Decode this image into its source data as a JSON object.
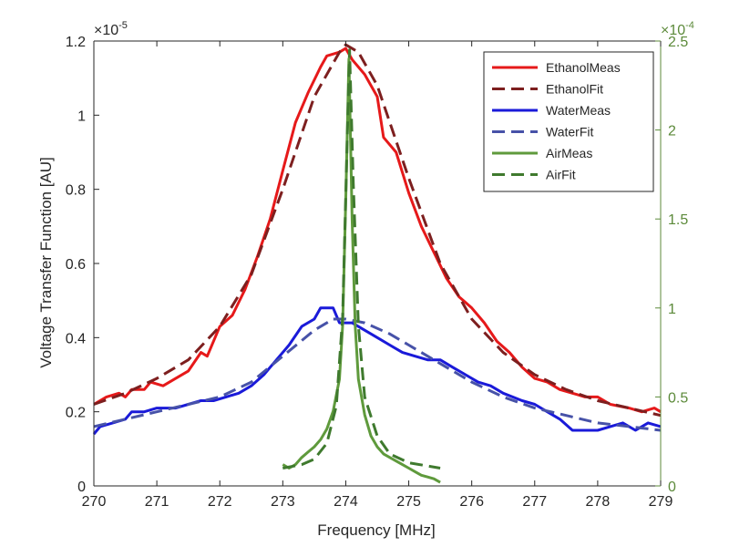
{
  "chart_data": {
    "type": "line",
    "xlabel": "Frequency [MHz]",
    "ylabel_left": "Voltage Transfer Function [AU]",
    "ylabel_right": "",
    "left_exponent": "×10",
    "left_exponent_power": "-5",
    "right_exponent": "×10",
    "right_exponent_power": "-4",
    "xlim": [
      270,
      279
    ],
    "ylim_left": [
      0,
      1.2
    ],
    "ylim_right": [
      0,
      2.5
    ],
    "x_ticks": [
      {
        "value": 270,
        "label": "270"
      },
      {
        "value": 271,
        "label": "271"
      },
      {
        "value": 272,
        "label": "272"
      },
      {
        "value": 273,
        "label": "273"
      },
      {
        "value": 274,
        "label": "274"
      },
      {
        "value": 275,
        "label": "275"
      },
      {
        "value": 276,
        "label": "276"
      },
      {
        "value": 277,
        "label": "277"
      },
      {
        "value": 278,
        "label": "278"
      },
      {
        "value": 279,
        "label": "279"
      }
    ],
    "y_left_ticks": [
      {
        "value": 0,
        "label": "0"
      },
      {
        "value": 0.2,
        "label": "0.2"
      },
      {
        "value": 0.4,
        "label": "0.4"
      },
      {
        "value": 0.6,
        "label": "0.6"
      },
      {
        "value": 0.8,
        "label": "0.8"
      },
      {
        "value": 1.0,
        "label": "1"
      },
      {
        "value": 1.2,
        "label": "1.2"
      }
    ],
    "y_right_ticks": [
      {
        "value": 0,
        "label": "0"
      },
      {
        "value": 0.5,
        "label": "0.5"
      },
      {
        "value": 1.0,
        "label": "1"
      },
      {
        "value": 1.5,
        "label": "1.5"
      },
      {
        "value": 2.0,
        "label": "2"
      },
      {
        "value": 2.5,
        "label": "2.5"
      }
    ],
    "grid": false,
    "legend_position": "top-right",
    "colors": {
      "ethanol_meas": "#e6191a",
      "ethanol_fit": "#7d1f1f",
      "water_meas": "#1a1ad9",
      "water_fit": "#4752a8",
      "air_meas": "#5f9a3c",
      "air_fit": "#3f7a2e",
      "right_axis": "#5c8a3a",
      "left_axis": "#262626"
    },
    "series": [
      {
        "name": "EthanolMeas",
        "axis": "left",
        "style": "solid",
        "color_key": "ethanol_meas",
        "points": [
          [
            270,
            0.22
          ],
          [
            270.2,
            0.24
          ],
          [
            270.4,
            0.25
          ],
          [
            270.5,
            0.24
          ],
          [
            270.6,
            0.26
          ],
          [
            270.8,
            0.26
          ],
          [
            270.9,
            0.28
          ],
          [
            271.1,
            0.27
          ],
          [
            271.3,
            0.29
          ],
          [
            271.5,
            0.31
          ],
          [
            271.7,
            0.36
          ],
          [
            271.8,
            0.35
          ],
          [
            272,
            0.43
          ],
          [
            272.2,
            0.46
          ],
          [
            272.4,
            0.53
          ],
          [
            272.6,
            0.62
          ],
          [
            272.8,
            0.72
          ],
          [
            273,
            0.85
          ],
          [
            273.2,
            0.98
          ],
          [
            273.4,
            1.06
          ],
          [
            273.6,
            1.13
          ],
          [
            273.7,
            1.16
          ],
          [
            273.9,
            1.17
          ],
          [
            274.0,
            1.18
          ],
          [
            274.1,
            1.15
          ],
          [
            274.3,
            1.11
          ],
          [
            274.5,
            1.05
          ],
          [
            274.6,
            0.94
          ],
          [
            274.8,
            0.9
          ],
          [
            275,
            0.79
          ],
          [
            275.2,
            0.7
          ],
          [
            275.4,
            0.63
          ],
          [
            275.6,
            0.56
          ],
          [
            275.8,
            0.51
          ],
          [
            276,
            0.48
          ],
          [
            276.2,
            0.44
          ],
          [
            276.4,
            0.39
          ],
          [
            276.6,
            0.36
          ],
          [
            276.8,
            0.32
          ],
          [
            277,
            0.29
          ],
          [
            277.2,
            0.28
          ],
          [
            277.4,
            0.26
          ],
          [
            277.6,
            0.25
          ],
          [
            277.8,
            0.24
          ],
          [
            278,
            0.24
          ],
          [
            278.2,
            0.22
          ],
          [
            278.5,
            0.21
          ],
          [
            278.7,
            0.2
          ],
          [
            278.9,
            0.21
          ],
          [
            279,
            0.2
          ]
        ]
      },
      {
        "name": "EthanolFit",
        "axis": "left",
        "style": "dash",
        "color_key": "ethanol_fit",
        "points": [
          [
            270,
            0.22
          ],
          [
            270.5,
            0.25
          ],
          [
            271,
            0.29
          ],
          [
            271.5,
            0.34
          ],
          [
            272,
            0.43
          ],
          [
            272.5,
            0.57
          ],
          [
            273,
            0.8
          ],
          [
            273.5,
            1.05
          ],
          [
            273.9,
            1.17
          ],
          [
            274.0,
            1.19
          ],
          [
            274.2,
            1.17
          ],
          [
            274.5,
            1.08
          ],
          [
            275,
            0.83
          ],
          [
            275.5,
            0.6
          ],
          [
            276,
            0.45
          ],
          [
            276.5,
            0.36
          ],
          [
            277,
            0.3
          ],
          [
            277.5,
            0.26
          ],
          [
            278,
            0.23
          ],
          [
            278.5,
            0.21
          ],
          [
            279,
            0.19
          ]
        ]
      },
      {
        "name": "WaterMeas",
        "axis": "left",
        "style": "solid",
        "color_key": "water_meas",
        "points": [
          [
            270,
            0.14
          ],
          [
            270.1,
            0.16
          ],
          [
            270.3,
            0.17
          ],
          [
            270.5,
            0.18
          ],
          [
            270.6,
            0.2
          ],
          [
            270.8,
            0.2
          ],
          [
            271,
            0.21
          ],
          [
            271.3,
            0.21
          ],
          [
            271.5,
            0.22
          ],
          [
            271.7,
            0.23
          ],
          [
            271.9,
            0.23
          ],
          [
            272.1,
            0.24
          ],
          [
            272.3,
            0.25
          ],
          [
            272.5,
            0.27
          ],
          [
            272.7,
            0.3
          ],
          [
            272.9,
            0.34
          ],
          [
            273.1,
            0.38
          ],
          [
            273.3,
            0.43
          ],
          [
            273.5,
            0.45
          ],
          [
            273.6,
            0.48
          ],
          [
            273.8,
            0.48
          ],
          [
            273.9,
            0.44
          ],
          [
            274.1,
            0.44
          ],
          [
            274.3,
            0.42
          ],
          [
            274.5,
            0.4
          ],
          [
            274.7,
            0.38
          ],
          [
            274.9,
            0.36
          ],
          [
            275.1,
            0.35
          ],
          [
            275.3,
            0.34
          ],
          [
            275.5,
            0.34
          ],
          [
            275.7,
            0.32
          ],
          [
            275.9,
            0.3
          ],
          [
            276.1,
            0.28
          ],
          [
            276.3,
            0.27
          ],
          [
            276.5,
            0.25
          ],
          [
            276.8,
            0.23
          ],
          [
            277,
            0.22
          ],
          [
            277.2,
            0.2
          ],
          [
            277.4,
            0.18
          ],
          [
            277.6,
            0.15
          ],
          [
            277.8,
            0.15
          ],
          [
            278,
            0.15
          ],
          [
            278.2,
            0.16
          ],
          [
            278.4,
            0.17
          ],
          [
            278.6,
            0.15
          ],
          [
            278.8,
            0.17
          ],
          [
            279,
            0.16
          ]
        ]
      },
      {
        "name": "WaterFit",
        "axis": "left",
        "style": "dash",
        "color_key": "water_fit",
        "points": [
          [
            270,
            0.16
          ],
          [
            270.5,
            0.18
          ],
          [
            271,
            0.2
          ],
          [
            271.5,
            0.22
          ],
          [
            272,
            0.24
          ],
          [
            272.5,
            0.28
          ],
          [
            273,
            0.35
          ],
          [
            273.5,
            0.42
          ],
          [
            273.8,
            0.45
          ],
          [
            274,
            0.45
          ],
          [
            274.3,
            0.44
          ],
          [
            274.7,
            0.41
          ],
          [
            275,
            0.38
          ],
          [
            275.5,
            0.33
          ],
          [
            276,
            0.28
          ],
          [
            276.5,
            0.24
          ],
          [
            277,
            0.21
          ],
          [
            277.5,
            0.19
          ],
          [
            278,
            0.17
          ],
          [
            278.5,
            0.16
          ],
          [
            279,
            0.15
          ]
        ]
      },
      {
        "name": "AirMeas",
        "axis": "right",
        "style": "solid",
        "color_key": "air_meas",
        "points": [
          [
            273.0,
            0.12
          ],
          [
            273.1,
            0.1
          ],
          [
            273.2,
            0.12
          ],
          [
            273.3,
            0.16
          ],
          [
            273.4,
            0.19
          ],
          [
            273.5,
            0.22
          ],
          [
            273.6,
            0.26
          ],
          [
            273.7,
            0.32
          ],
          [
            273.8,
            0.42
          ],
          [
            273.9,
            0.6
          ],
          [
            273.95,
            0.9
          ],
          [
            274.0,
            1.6
          ],
          [
            274.05,
            2.4
          ],
          [
            274.1,
            1.5
          ],
          [
            274.15,
            0.9
          ],
          [
            274.2,
            0.6
          ],
          [
            274.3,
            0.4
          ],
          [
            274.4,
            0.28
          ],
          [
            274.5,
            0.22
          ],
          [
            274.6,
            0.18
          ],
          [
            274.7,
            0.16
          ],
          [
            274.8,
            0.14
          ],
          [
            274.9,
            0.12
          ],
          [
            275.0,
            0.1
          ],
          [
            275.1,
            0.08
          ],
          [
            275.2,
            0.06
          ],
          [
            275.3,
            0.05
          ],
          [
            275.4,
            0.04
          ],
          [
            275.5,
            0.02
          ]
        ]
      },
      {
        "name": "AirFit",
        "axis": "right",
        "style": "dash",
        "color_key": "air_fit",
        "points": [
          [
            273,
            0.1
          ],
          [
            273.3,
            0.12
          ],
          [
            273.5,
            0.15
          ],
          [
            273.7,
            0.24
          ],
          [
            273.85,
            0.45
          ],
          [
            273.95,
            0.95
          ],
          [
            274.02,
            1.9
          ],
          [
            274.06,
            2.45
          ],
          [
            274.12,
            1.7
          ],
          [
            274.2,
            0.9
          ],
          [
            274.3,
            0.5
          ],
          [
            274.5,
            0.28
          ],
          [
            274.7,
            0.18
          ],
          [
            275,
            0.13
          ],
          [
            275.5,
            0.1
          ]
        ]
      }
    ]
  }
}
